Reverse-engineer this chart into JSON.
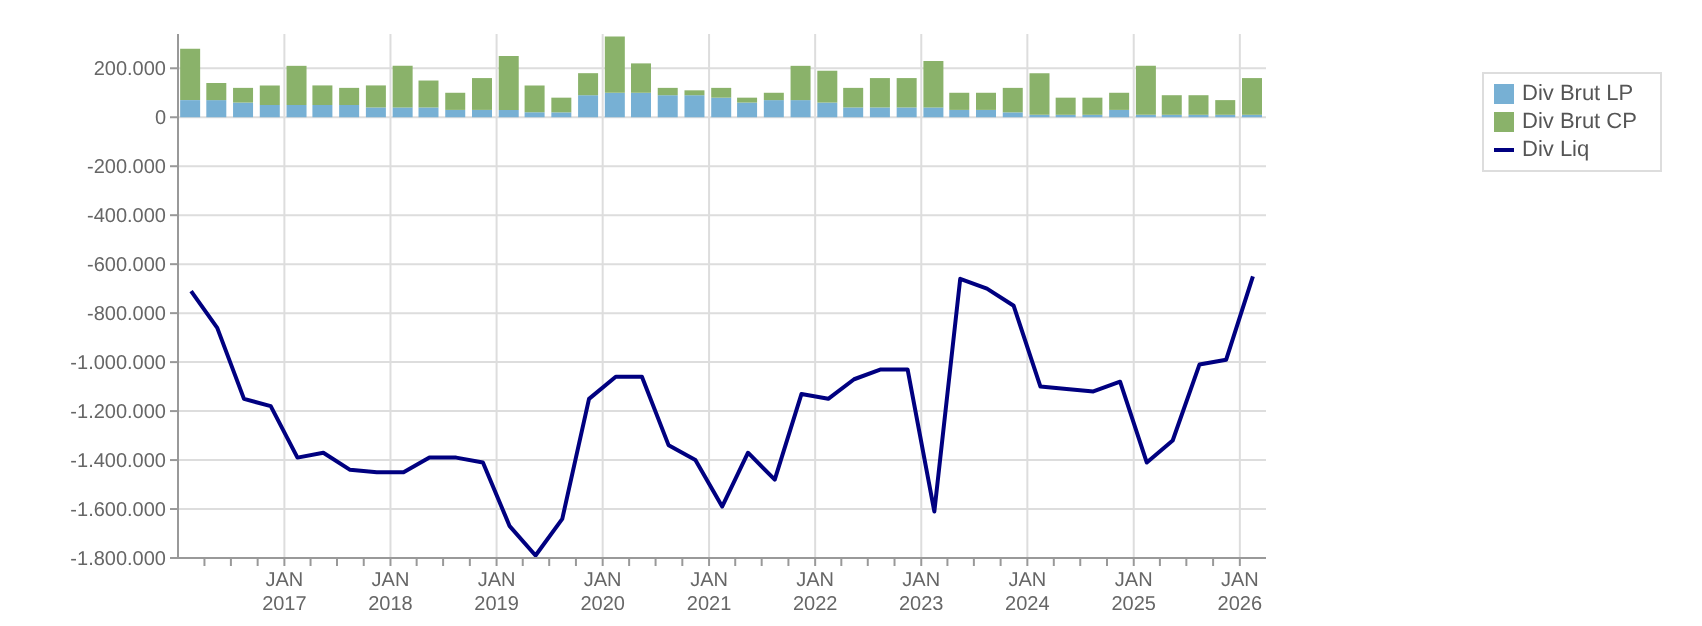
{
  "chart_data": {
    "type": "bar",
    "stacked": true,
    "x": [
      "2016-02-15",
      "2016-05-15",
      "2016-08-15",
      "2016-11-15",
      "2017-02-15",
      "2017-05-15",
      "2017-08-15",
      "2017-11-15",
      "2018-02-15",
      "2018-05-15",
      "2018-08-15",
      "2018-11-15",
      "2019-02-15",
      "2019-05-15",
      "2019-08-15",
      "2019-11-15",
      "2020-02-15",
      "2020-05-15",
      "2020-08-15",
      "2020-11-15",
      "2021-02-15",
      "2021-05-15",
      "2021-08-15",
      "2021-11-15",
      "2022-02-15",
      "2022-05-15",
      "2022-08-15",
      "2022-11-15",
      "2023-02-15",
      "2023-05-15",
      "2023-08-15",
      "2023-11-15",
      "2024-02-15",
      "2024-05-15",
      "2024-08-15",
      "2024-11-15",
      "2025-02-15",
      "2025-05-15",
      "2025-08-15",
      "2025-11-15",
      "2026-02-15"
    ],
    "series": [
      {
        "name": "Div Brut LP",
        "color": "#77b0d4",
        "values": [
          70000,
          70000,
          60000,
          50000,
          50000,
          50000,
          50000,
          40000,
          40000,
          40000,
          30000,
          30000,
          30000,
          20000,
          20000,
          90000,
          100000,
          100000,
          90000,
          90000,
          80000,
          60000,
          70000,
          70000,
          60000,
          40000,
          40000,
          40000,
          40000,
          30000,
          30000,
          20000,
          10000,
          10000,
          10000,
          30000,
          10000,
          10000,
          10000,
          10000,
          10000
        ]
      },
      {
        "name": "Div Brut CP",
        "color": "#8ab26a",
        "values": [
          210000,
          70000,
          60000,
          80000,
          160000,
          80000,
          70000,
          90000,
          170000,
          110000,
          70000,
          130000,
          220000,
          110000,
          60000,
          90000,
          230000,
          120000,
          30000,
          20000,
          40000,
          20000,
          30000,
          140000,
          130000,
          80000,
          120000,
          120000,
          190000,
          70000,
          70000,
          100000,
          170000,
          70000,
          70000,
          70000,
          200000,
          80000,
          80000,
          60000,
          150000
        ]
      },
      {
        "name": "Div Liq",
        "type": "line",
        "color": "#000080",
        "values": [
          -710000,
          -860000,
          -1150000,
          -1180000,
          -1390000,
          -1370000,
          -1440000,
          -1450000,
          -1450000,
          -1390000,
          -1390000,
          -1410000,
          -1670000,
          -1790000,
          -1640000,
          -1150000,
          -1060000,
          -1060000,
          -1340000,
          -1400000,
          -1590000,
          -1370000,
          -1480000,
          -1130000,
          -1150000,
          -1070000,
          -1030000,
          -1030000,
          -1610000,
          -660000,
          -700000,
          -770000,
          -1100000,
          -1110000,
          -1120000,
          -1080000,
          -1410000,
          -1320000,
          -1010000,
          -990000,
          -650000
        ]
      }
    ],
    "xlim": [
      "2016-01-01",
      "2026-04-01"
    ],
    "xticks": [
      {
        "value": "2016-04-01",
        "label": null
      },
      {
        "value": "2016-07-01",
        "label": null
      },
      {
        "value": "2016-10-01",
        "label": null
      },
      {
        "value": "2017-01-01",
        "label": "JAN 2017"
      },
      {
        "value": "2017-04-01",
        "label": null
      },
      {
        "value": "2017-07-01",
        "label": null
      },
      {
        "value": "2017-10-01",
        "label": null
      },
      {
        "value": "2018-01-01",
        "label": "JAN 2018"
      },
      {
        "value": "2018-04-01",
        "label": null
      },
      {
        "value": "2018-07-01",
        "label": null
      },
      {
        "value": "2018-10-01",
        "label": null
      },
      {
        "value": "2019-01-01",
        "label": "JAN 2019"
      },
      {
        "value": "2019-04-01",
        "label": null
      },
      {
        "value": "2019-07-01",
        "label": null
      },
      {
        "value": "2019-10-01",
        "label": null
      },
      {
        "value": "2020-01-01",
        "label": "JAN 2020"
      },
      {
        "value": "2020-04-01",
        "label": null
      },
      {
        "value": "2020-07-01",
        "label": null
      },
      {
        "value": "2020-10-01",
        "label": null
      },
      {
        "value": "2021-01-01",
        "label": "JAN 2021"
      },
      {
        "value": "2021-04-01",
        "label": null
      },
      {
        "value": "2021-07-01",
        "label": null
      },
      {
        "value": "2021-10-01",
        "label": null
      },
      {
        "value": "2022-01-01",
        "label": "JAN 2022"
      },
      {
        "value": "2022-04-01",
        "label": null
      },
      {
        "value": "2022-07-01",
        "label": null
      },
      {
        "value": "2022-10-01",
        "label": null
      },
      {
        "value": "2023-01-01",
        "label": "JAN 2023"
      },
      {
        "value": "2023-04-01",
        "label": null
      },
      {
        "value": "2023-07-01",
        "label": null
      },
      {
        "value": "2023-10-01",
        "label": null
      },
      {
        "value": "2024-01-01",
        "label": "JAN 2024"
      },
      {
        "value": "2024-04-01",
        "label": null
      },
      {
        "value": "2024-07-01",
        "label": null
      },
      {
        "value": "2024-10-01",
        "label": null
      },
      {
        "value": "2025-01-01",
        "label": "JAN 2025"
      },
      {
        "value": "2025-04-01",
        "label": null
      },
      {
        "value": "2025-07-01",
        "label": null
      },
      {
        "value": "2025-10-01",
        "label": null
      },
      {
        "value": "2026-01-01",
        "label": "JAN 2026"
      }
    ],
    "ylim": [
      -1800000,
      340000
    ],
    "yticks": [
      {
        "value": -1800000,
        "label": "-1.800.000"
      },
      {
        "value": -1600000,
        "label": "-1.600.000"
      },
      {
        "value": -1400000,
        "label": "-1.400.000"
      },
      {
        "value": -1200000,
        "label": "-1.200.000"
      },
      {
        "value": -1000000,
        "label": "-1.000.000"
      },
      {
        "value": -800000,
        "label": "-800.000"
      },
      {
        "value": -600000,
        "label": "-600.000"
      },
      {
        "value": -400000,
        "label": "-400.000"
      },
      {
        "value": -200000,
        "label": "-200.000"
      },
      {
        "value": 0,
        "label": "0"
      },
      {
        "value": 200000,
        "label": "200.000"
      }
    ],
    "grid": true,
    "legend": "top right",
    "marker": "none",
    "line_style": "solid"
  }
}
